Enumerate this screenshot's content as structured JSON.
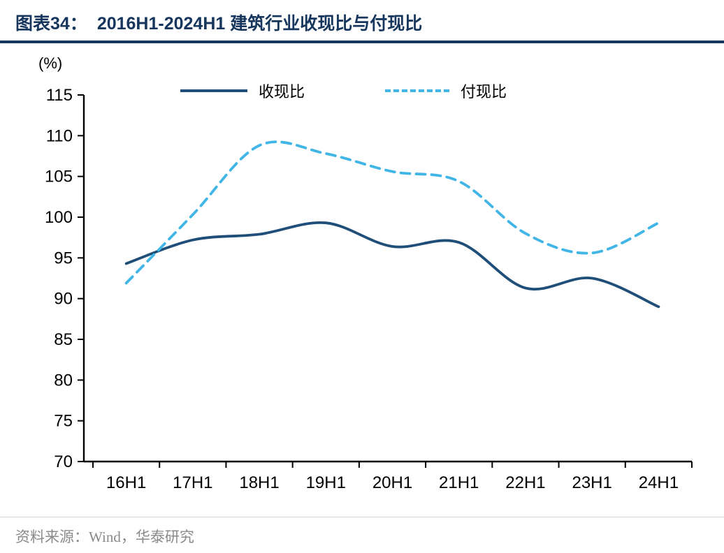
{
  "header": {
    "figure_label": "图表34：",
    "title": "2016H1-2024H1 建筑行业收现比与付现比"
  },
  "chart_data": {
    "type": "line",
    "title": "2016H1-2024H1 建筑行业收现比与付现比",
    "unit_label": "(%)",
    "xlabel": "",
    "ylabel": "(%)",
    "ylim": [
      70,
      115
    ],
    "yticks": [
      70,
      75,
      80,
      85,
      90,
      95,
      100,
      105,
      110,
      115
    ],
    "grid": false,
    "legend_position": "top",
    "categories": [
      "16H1",
      "17H1",
      "18H1",
      "19H1",
      "20H1",
      "21H1",
      "22H1",
      "23H1",
      "24H1"
    ],
    "series": [
      {
        "name": "收现比",
        "style": "solid",
        "color": "#1F4E79",
        "values": [
          94.3,
          97.2,
          97.9,
          99.3,
          96.4,
          96.9,
          91.3,
          92.5,
          89.0
        ]
      },
      {
        "name": "付现比",
        "style": "dashed",
        "color": "#41B6E6",
        "values": [
          91.9,
          100.3,
          108.8,
          107.8,
          105.6,
          104.4,
          98.0,
          95.6,
          99.3
        ]
      }
    ]
  },
  "footer": {
    "source": "资料来源：Wind，华泰研究"
  }
}
